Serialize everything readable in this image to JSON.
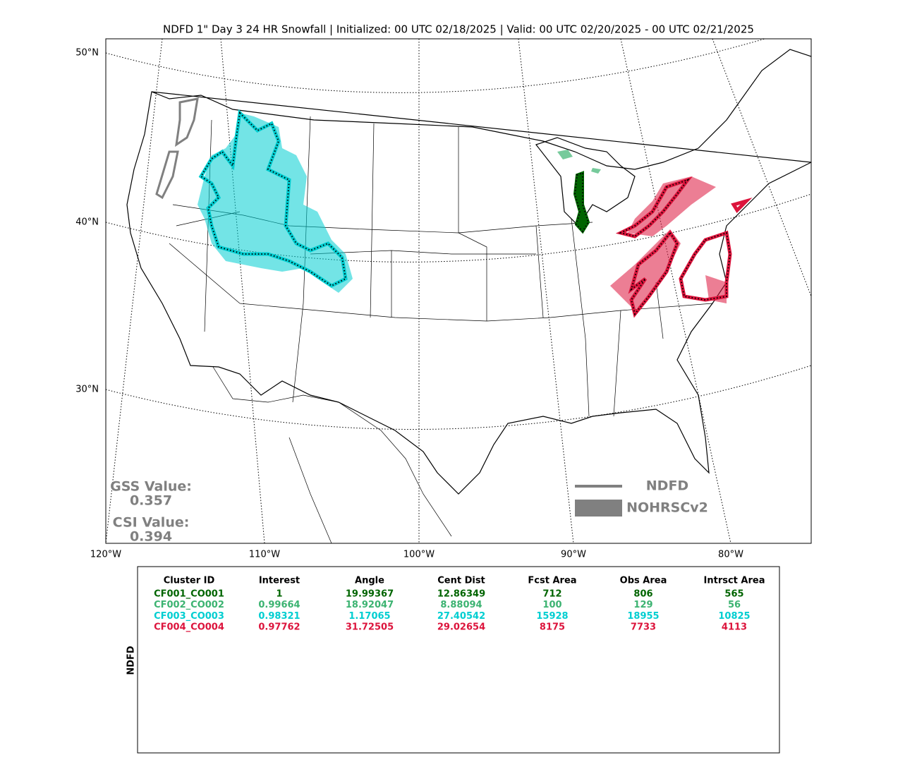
{
  "title": "NDFD 1\" Day 3 24 HR Snowfall | Initialized: 00 UTC 02/18/2025 | Valid: 00 UTC 02/20/2025 - 00 UTC 02/21/2025",
  "map": {
    "lat_labels": [
      "50°N",
      "40°N",
      "30°N"
    ],
    "lon_labels": [
      "120°W",
      "110°W",
      "100°W",
      "90°W",
      "80°W"
    ],
    "gss": {
      "label": "GSS Value:",
      "value": "0.357"
    },
    "csi": {
      "label": "CSI Value:",
      "value": "0.394"
    },
    "legend": [
      {
        "name": "NDFD",
        "color": "#808080"
      },
      {
        "name": "NOHRSCv2",
        "color": "#808080"
      }
    ]
  },
  "table": {
    "side_label": "NDFD",
    "header": [
      "Cluster ID",
      "Interest",
      "Angle",
      "Cent Dist",
      "Fcst Area",
      "Obs Area",
      "Intrsct Area"
    ],
    "rows": [
      {
        "color": "#006400",
        "cells": [
          "CF001_CO001",
          "1",
          "19.99367",
          "12.86349",
          "712",
          "806",
          "565"
        ]
      },
      {
        "color": "#3cb371",
        "cells": [
          "CF002_CO002",
          "0.99664",
          "18.92047",
          "8.88094",
          "100",
          "129",
          "56"
        ]
      },
      {
        "color": "#00ced1",
        "cells": [
          "CF003_CO003",
          "0.98321",
          "1.17065",
          "27.40542",
          "15928",
          "18955",
          "10825"
        ]
      },
      {
        "color": "#dc143c",
        "cells": [
          "CF004_CO004",
          "0.97762",
          "31.72505",
          "29.02654",
          "8175",
          "7733",
          "4113"
        ]
      }
    ]
  }
}
